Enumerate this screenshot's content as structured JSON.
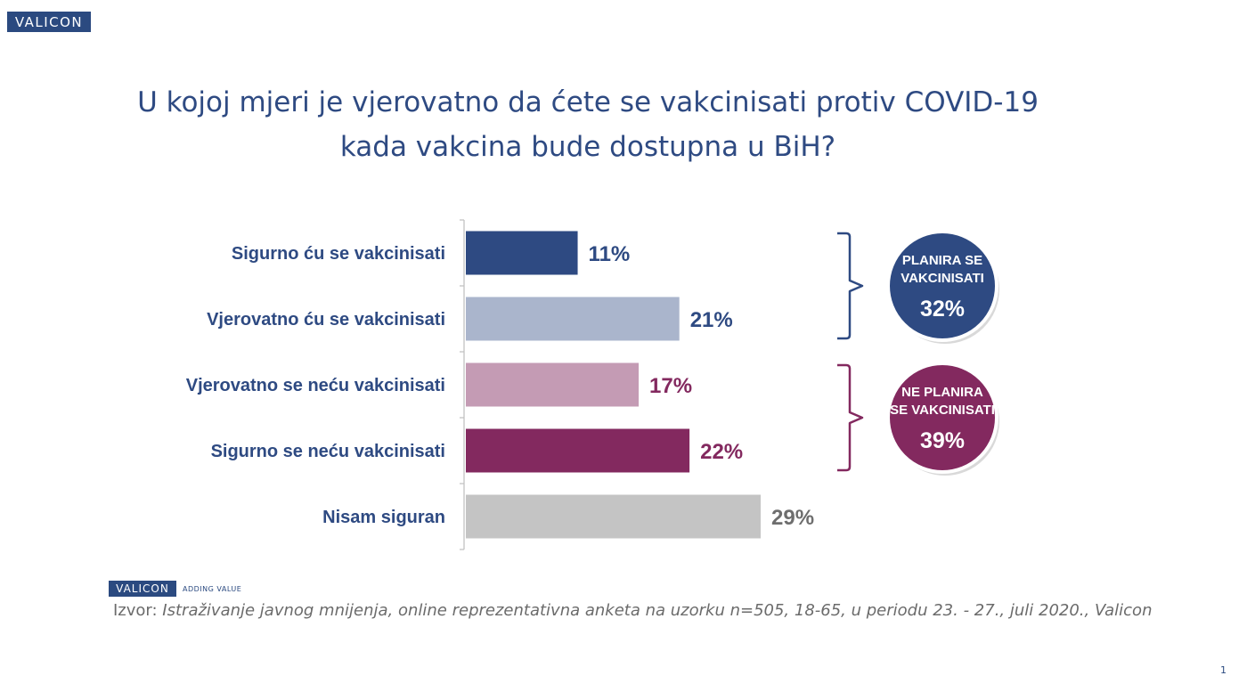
{
  "brand": {
    "logo_text": "VALICON",
    "tagline": "ADDING VALUE"
  },
  "chart_data": {
    "type": "bar",
    "orientation": "horizontal",
    "title_line1": "U kojoj mjeri je vjerovatno da ćete se vakcinisati protiv COVID-19",
    "title_line2": "kada vakcina bude dostupna u BiH?",
    "categories": [
      "Sigurno ću se vakcinisati",
      "Vjerovatno ću se vakcinisati",
      "Vjerovatno se neću vakcinisati",
      "Sigurno se neću vakcinisati",
      "Nisam siguran"
    ],
    "values": [
      11,
      21,
      17,
      22,
      29
    ],
    "value_labels": [
      "11%",
      "21%",
      "17%",
      "22%",
      "29%"
    ],
    "bar_colors": [
      "#2e4a82",
      "#aab5cc",
      "#c49bb4",
      "#83295f",
      "#c4c4c4"
    ],
    "label_colors": [
      "#2e4a82",
      "#2e4a82",
      "#83295f",
      "#83295f",
      "#6e6e6e"
    ],
    "xlim": [
      0,
      29
    ],
    "grid": false,
    "groups": [
      {
        "line1": "PLANIRA SE",
        "line2": "VAKCINISATI",
        "value_label": "32%",
        "value": 32,
        "color": "#2e4a82",
        "members": [
          0,
          1
        ]
      },
      {
        "line1": "NE PLANIRA",
        "line2": "SE VAKCINISATI",
        "value_label": "39%",
        "value": 39,
        "color": "#83295f",
        "members": [
          2,
          3
        ]
      }
    ]
  },
  "footer": {
    "source_prefix": "Izvor: ",
    "source_text": "Istraživanje javnog mnijenja, online reprezentativna anketa na uzorku n=505, 18-65, u periodu 23. - 27., juli 2020., Valicon"
  },
  "page_number": "1"
}
